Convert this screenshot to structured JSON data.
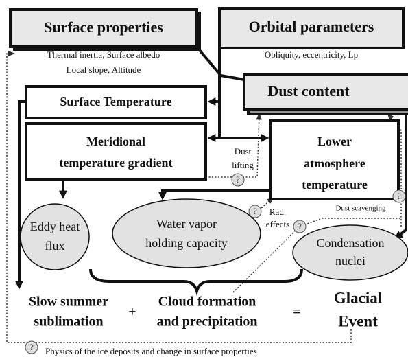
{
  "surface_properties": {
    "title": "Surface properties",
    "details": [
      "Thermal inertia, Surface albedo",
      "Local slope, Altitude"
    ]
  },
  "orbital_parameters": {
    "title": "Orbital parameters",
    "details": [
      "Obliquity, eccentricity, Lp"
    ]
  },
  "dust_content": {
    "title": "Dust content"
  },
  "surface_temperature": {
    "title": "Surface Temperature"
  },
  "meridional_gradient": {
    "lines": [
      "Meridional",
      "temperature gradient"
    ]
  },
  "lower_atmosphere": {
    "lines": [
      "Lower",
      "atmosphere",
      "temperature"
    ]
  },
  "eddy_heat_flux": {
    "lines": [
      "Eddy heat",
      "flux"
    ]
  },
  "water_vapor": {
    "lines": [
      "Water vapor",
      "holding capacity"
    ]
  },
  "condensation_nuclei": {
    "lines": [
      "Condensation",
      "nuclei"
    ]
  },
  "annotations": {
    "dust_lifting": [
      "Dust",
      "lifting"
    ],
    "rad_effects": [
      "Rad.",
      "effects"
    ],
    "dust_scavenging": "Dust scavenging",
    "question": "?"
  },
  "equation": {
    "term1": [
      "Slow summer",
      "sublimation"
    ],
    "plus": "+",
    "term2": [
      "Cloud formation",
      "and precipitation"
    ],
    "equals": "=",
    "result": [
      "Glacial",
      "Event"
    ]
  },
  "footer": "Physics of the ice deposits and change in surface properties"
}
